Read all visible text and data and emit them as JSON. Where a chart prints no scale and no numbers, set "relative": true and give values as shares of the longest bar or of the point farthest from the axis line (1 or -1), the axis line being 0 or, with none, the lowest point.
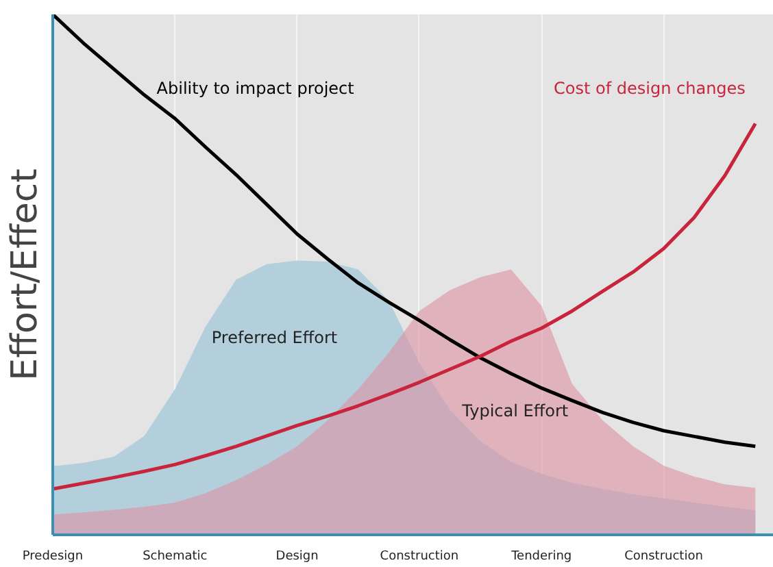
{
  "chart_data": {
    "type": "area",
    "relative": true,
    "ylabel": "Effort/Effect",
    "grid": "x",
    "categories": [
      "Predesign",
      null,
      null,
      null,
      "Schematic",
      null,
      null,
      null,
      "Design",
      null,
      null,
      null,
      "Construction",
      null,
      null,
      null,
      "Tendering",
      null,
      null,
      null,
      "Construction",
      null,
      null,
      null
    ],
    "series": [
      {
        "name": "Preferred Effort",
        "color": "#b3cfdc",
        "values": [
          0.132,
          0.138,
          0.15,
          0.19,
          0.28,
          0.4,
          0.49,
          0.52,
          0.527,
          0.525,
          0.51,
          0.45,
          0.33,
          0.24,
          0.18,
          0.14,
          0.117,
          0.1,
          0.088,
          0.078,
          0.07,
          0.062,
          0.054,
          0.047
        ]
      },
      {
        "name": "Typical Effort",
        "color": "#dc91a1",
        "values": [
          0.039,
          0.043,
          0.048,
          0.054,
          0.062,
          0.08,
          0.105,
          0.135,
          0.17,
          0.22,
          0.28,
          0.35,
          0.43,
          0.47,
          0.495,
          0.51,
          0.44,
          0.29,
          0.22,
          0.17,
          0.133,
          0.112,
          0.097,
          0.09
        ]
      },
      {
        "name": "Ability to impact project",
        "type": "line",
        "color": "#000000",
        "values": [
          1.0,
          0.945,
          0.895,
          0.845,
          0.8,
          0.745,
          0.692,
          0.635,
          0.578,
          0.53,
          0.484,
          0.447,
          0.412,
          0.375,
          0.34,
          0.31,
          0.282,
          0.258,
          0.235,
          0.216,
          0.2,
          0.189,
          0.178,
          0.17
        ]
      },
      {
        "name": "Cost of design changes",
        "type": "line",
        "color": "#c8243c",
        "values": [
          0.088,
          0.099,
          0.11,
          0.122,
          0.135,
          0.152,
          0.17,
          0.19,
          0.21,
          0.228,
          0.248,
          0.27,
          0.293,
          0.318,
          0.343,
          0.372,
          0.397,
          0.43,
          0.468,
          0.505,
          0.55,
          0.61,
          0.69,
          0.79
        ]
      }
    ]
  }
}
